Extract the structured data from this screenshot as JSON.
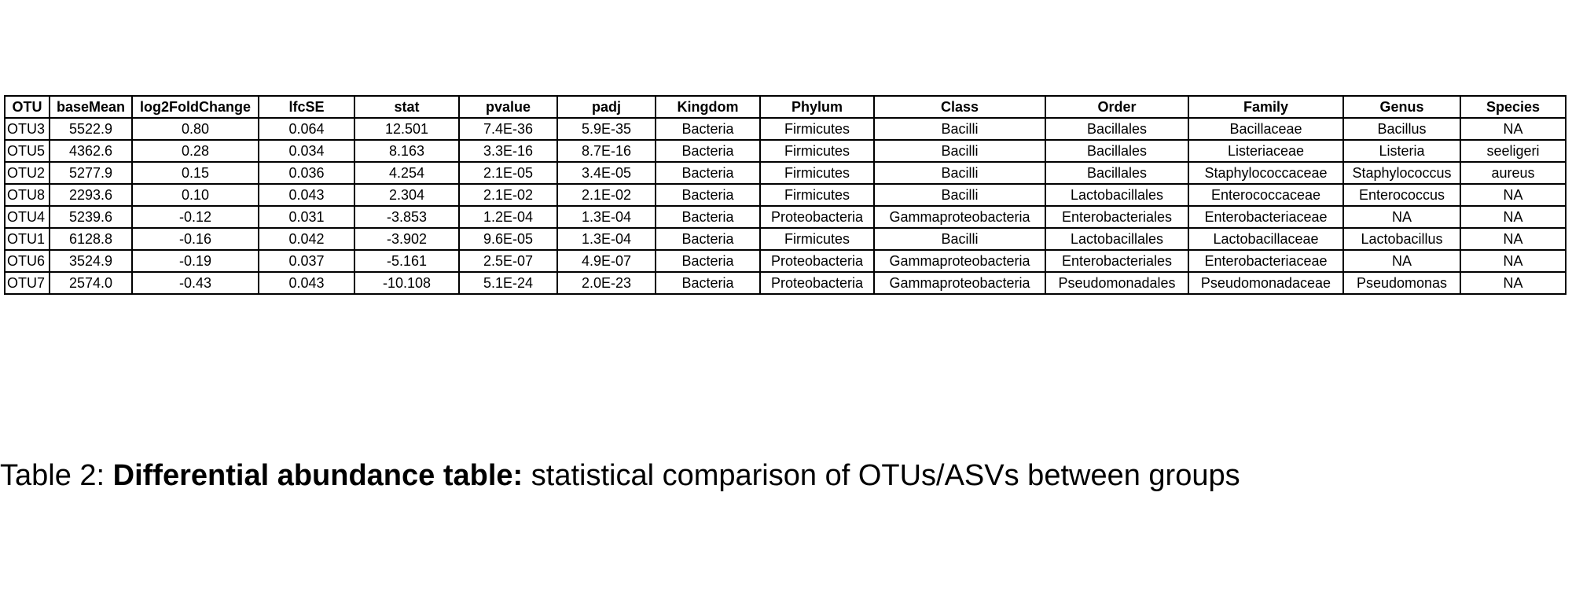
{
  "table": {
    "header": [
      "OTU",
      "baseMean",
      "log2FoldChange",
      "lfcSE",
      "stat",
      "pvalue",
      "padj",
      "Kingdom",
      "Phylum",
      "Class",
      "Order",
      "Family",
      "Genus",
      "Species"
    ],
    "rows": [
      [
        "OTU3",
        "5522.9",
        "0.80",
        "0.064",
        "12.501",
        "7.4E-36",
        "5.9E-35",
        "Bacteria",
        "Firmicutes",
        "Bacilli",
        "Bacillales",
        "Bacillaceae",
        "Bacillus",
        "NA"
      ],
      [
        "OTU5",
        "4362.6",
        "0.28",
        "0.034",
        "8.163",
        "3.3E-16",
        "8.7E-16",
        "Bacteria",
        "Firmicutes",
        "Bacilli",
        "Bacillales",
        "Listeriaceae",
        "Listeria",
        "seeligeri"
      ],
      [
        "OTU2",
        "5277.9",
        "0.15",
        "0.036",
        "4.254",
        "2.1E-05",
        "3.4E-05",
        "Bacteria",
        "Firmicutes",
        "Bacilli",
        "Bacillales",
        "Staphylococcaceae",
        "Staphylococcus",
        "aureus"
      ],
      [
        "OTU8",
        "2293.6",
        "0.10",
        "0.043",
        "2.304",
        "2.1E-02",
        "2.1E-02",
        "Bacteria",
        "Firmicutes",
        "Bacilli",
        "Lactobacillales",
        "Enterococcaceae",
        "Enterococcus",
        "NA"
      ],
      [
        "OTU4",
        "5239.6",
        "-0.12",
        "0.031",
        "-3.853",
        "1.2E-04",
        "1.3E-04",
        "Bacteria",
        "Proteobacteria",
        "Gammaproteobacteria",
        "Enterobacteriales",
        "Enterobacteriaceae",
        "NA",
        "NA"
      ],
      [
        "OTU1",
        "6128.8",
        "-0.16",
        "0.042",
        "-3.902",
        "9.6E-05",
        "1.3E-04",
        "Bacteria",
        "Firmicutes",
        "Bacilli",
        "Lactobacillales",
        "Lactobacillaceae",
        "Lactobacillus",
        "NA"
      ],
      [
        "OTU6",
        "3524.9",
        "-0.19",
        "0.037",
        "-5.161",
        "2.5E-07",
        "4.9E-07",
        "Bacteria",
        "Proteobacteria",
        "Gammaproteobacteria",
        "Enterobacteriales",
        "Enterobacteriaceae",
        "NA",
        "NA"
      ],
      [
        "OTU7",
        "2574.0",
        "-0.43",
        "0.043",
        "-10.108",
        "5.1E-24",
        "2.0E-23",
        "Bacteria",
        "Proteobacteria",
        "Gammaproteobacteria",
        "Pseudomonadales",
        "Pseudomonadaceae",
        "Pseudomonas",
        "NA"
      ]
    ]
  },
  "caption": {
    "label": "Table 2:",
    "title": "Differential abundance table:",
    "text": "statistical comparison of OTUs/ASVs between groups"
  }
}
